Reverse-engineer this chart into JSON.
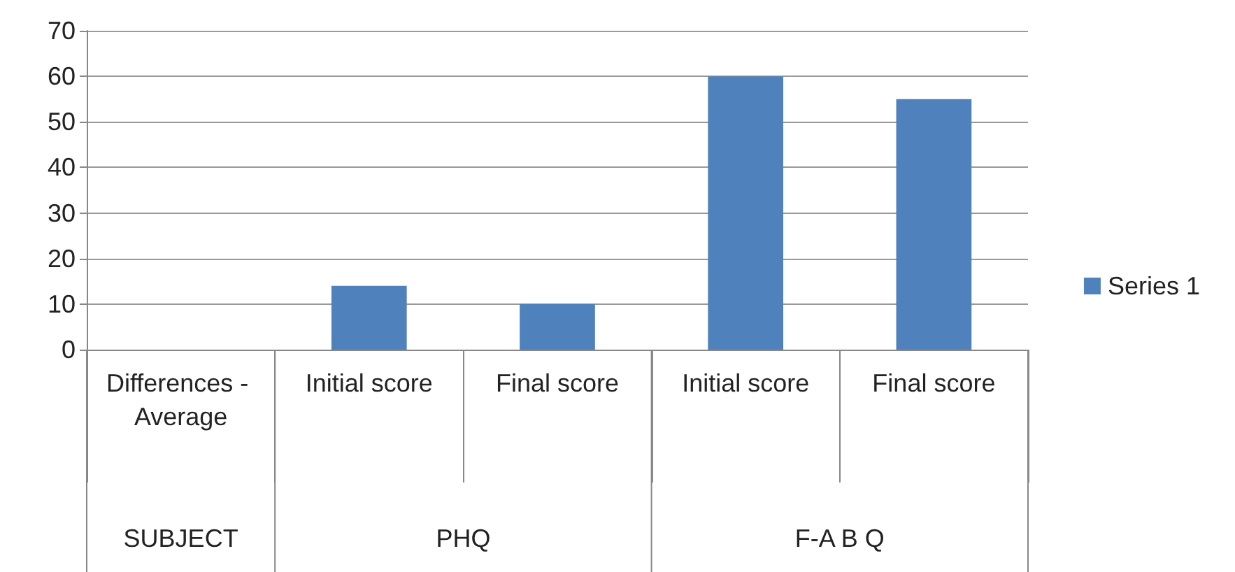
{
  "chart_data": {
    "type": "bar",
    "categories": [
      "Differences - Average",
      "Initial score",
      "Final score",
      "Initial score",
      "Final score"
    ],
    "series": [
      {
        "name": "Series 1",
        "color": "#4f81bd",
        "values": [
          null,
          14,
          10,
          60,
          55
        ]
      }
    ],
    "ylim": [
      0,
      70
    ],
    "yticks": [
      0,
      10,
      20,
      30,
      40,
      50,
      60,
      70
    ],
    "grid": "y",
    "legend": "right",
    "annotations": [
      "SUBJECT",
      "PHQ",
      "F-A B Q"
    ]
  }
}
